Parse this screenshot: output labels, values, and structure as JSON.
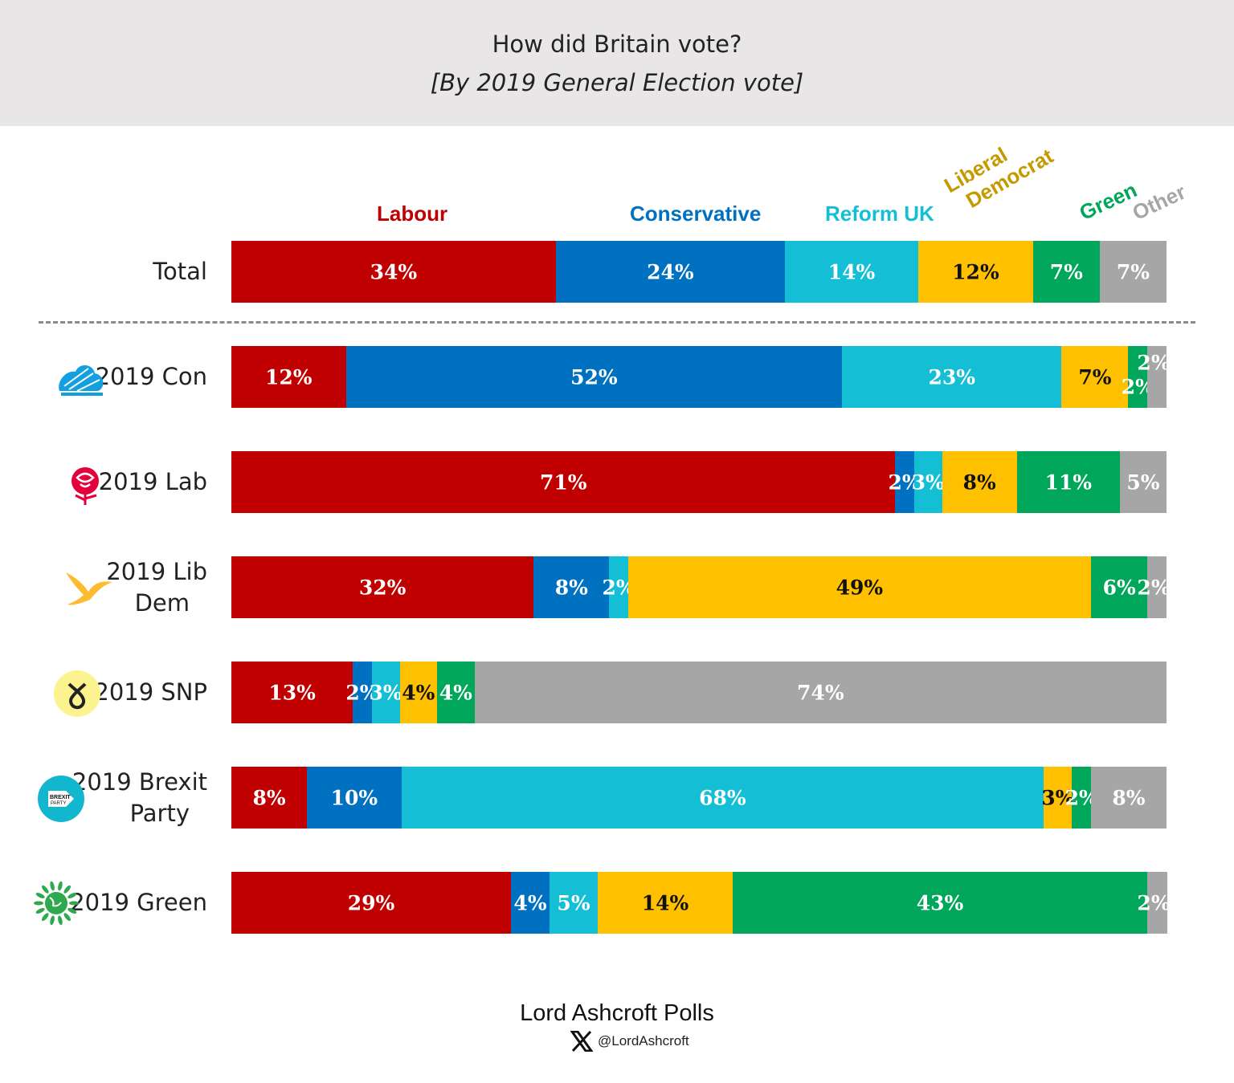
{
  "chart_data": {
    "type": "bar",
    "orientation": "horizontal",
    "stacked": true,
    "title": "How did Britain vote?",
    "subtitle": "[By 2019 General Election vote]",
    "legend_placement": "top",
    "series_names": [
      "Labour",
      "Conservative",
      "Reform UK",
      "Liberal Democrat",
      "Green",
      "Other"
    ],
    "colors": [
      "#c00000",
      "#0070c0",
      "#14bfd6",
      "#ffc000",
      "#00a65a",
      "#a6a6a6"
    ],
    "label_colors": [
      "#c00000",
      "#0070c0",
      "#14bfd6",
      "#c49a00",
      "#00a65a",
      "#a6a6a6"
    ],
    "categories": [
      "Total",
      "2019 Con",
      "2019 Lab",
      "2019 Lib Dem",
      "2019 SNP",
      "2019 Brexit Party",
      "2019 Green"
    ],
    "values": [
      [
        34,
        24,
        14,
        12,
        7,
        7
      ],
      [
        12,
        52,
        23,
        7,
        2,
        2
      ],
      [
        71,
        2,
        3,
        8,
        11,
        5
      ],
      [
        32,
        8,
        2,
        49,
        6,
        2
      ],
      [
        13,
        2,
        3,
        4,
        4,
        74
      ],
      [
        8,
        10,
        68,
        3,
        2,
        8
      ],
      [
        29,
        4,
        5,
        14,
        43,
        2
      ]
    ],
    "value_suffix": "%"
  },
  "row_icons": [
    "",
    "conservative-tree-icon",
    "labour-rose-icon",
    "libdem-bird-icon",
    "snp-logo-icon",
    "brexit-party-logo-icon",
    "green-party-logo-icon"
  ],
  "row_label_lines": [
    [
      "Total"
    ],
    [
      "2019 Con"
    ],
    [
      "2019 Lab"
    ],
    [
      "2019 Lib",
      "Dem"
    ],
    [
      "2019 SNP"
    ],
    [
      "2019 Brexit",
      "Party"
    ],
    [
      "2019 Green"
    ]
  ],
  "legend": {
    "libdem_line1": "Liberal",
    "libdem_line2": "Democrat"
  },
  "footer": {
    "source": "Lord Ashcroft Polls",
    "handle": "@LordAshcroft",
    "x_icon": "x-logo-icon"
  }
}
